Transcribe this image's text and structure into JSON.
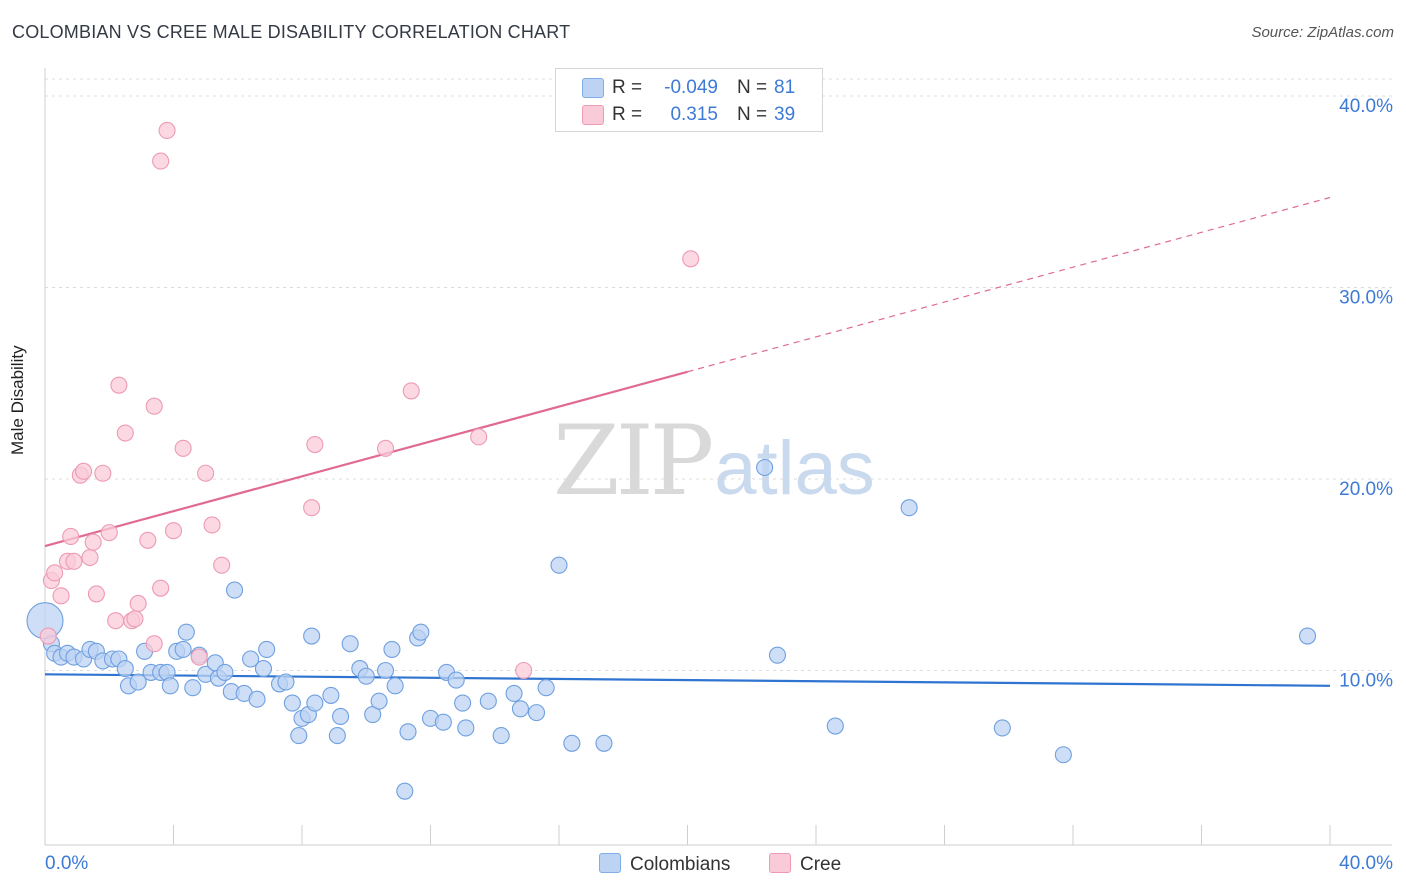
{
  "header": {
    "title": "COLOMBIAN VS CREE MALE DISABILITY CORRELATION CHART",
    "source": "Source: ZipAtlas.com"
  },
  "watermark": {
    "zip": "ZIP",
    "atlas": "atlas"
  },
  "legend_top": {
    "rows": [
      {
        "r_label": "R =",
        "r_value": "-0.049",
        "n_label": "N =",
        "n_value": "81",
        "color": "#bcd3f3",
        "border": "#7faee8"
      },
      {
        "r_label": "R =",
        "r_value": "0.315",
        "n_label": "N =",
        "n_value": "39",
        "color": "#f9cbd8",
        "border": "#ee9ab4"
      }
    ]
  },
  "legend_bottom": {
    "items": [
      {
        "label": "Colombians",
        "color": "#bcd3f3",
        "border": "#7faee8"
      },
      {
        "label": "Cree",
        "color": "#f9cbd8",
        "border": "#ee9ab4"
      }
    ]
  },
  "chart_data": {
    "type": "scatter",
    "title": "COLOMBIAN VS CREE MALE DISABILITY CORRELATION CHART",
    "xlabel": "",
    "ylabel": "Male Disability",
    "xlim": [
      0,
      40
    ],
    "ylim": [
      0,
      40
    ],
    "x_tick_labels": [
      "0.0%",
      "40.0%"
    ],
    "y_ticks": [
      10,
      20,
      30,
      40
    ],
    "y_tick_labels": [
      "10.0%",
      "20.0%",
      "30.0%",
      "40.0%"
    ],
    "grid": true,
    "colors": {
      "blue_fill": "#bcd3f3",
      "blue_edge": "#6fa0e0",
      "blue_line": "#2f74d0",
      "pink_fill": "#f9cbd8",
      "pink_edge": "#ee9ab4",
      "pink_line": "#e06a94",
      "tick_text": "#3d7ad6"
    },
    "series": [
      {
        "name": "Colombians",
        "r": -0.049,
        "n": 81,
        "trend": {
          "x0": 0.0,
          "y0": 9.8,
          "x1": 40.0,
          "y1": 9.2,
          "dashed_from": null
        },
        "points": [
          [
            0.0,
            12.6
          ],
          [
            0.2,
            11.4
          ],
          [
            0.3,
            10.9
          ],
          [
            0.5,
            10.7
          ],
          [
            0.7,
            10.9
          ],
          [
            0.9,
            10.7
          ],
          [
            1.2,
            10.6
          ],
          [
            1.4,
            11.1
          ],
          [
            1.6,
            11.0
          ],
          [
            1.8,
            10.5
          ],
          [
            2.1,
            10.6
          ],
          [
            2.3,
            10.6
          ],
          [
            2.5,
            10.1
          ],
          [
            2.6,
            9.2
          ],
          [
            2.9,
            9.4
          ],
          [
            3.1,
            11.0
          ],
          [
            3.3,
            9.9
          ],
          [
            3.6,
            9.9
          ],
          [
            3.8,
            9.9
          ],
          [
            3.9,
            9.2
          ],
          [
            4.1,
            11.0
          ],
          [
            4.3,
            11.1
          ],
          [
            4.4,
            12.0
          ],
          [
            4.6,
            9.1
          ],
          [
            4.8,
            10.8
          ],
          [
            5.0,
            9.8
          ],
          [
            5.3,
            10.4
          ],
          [
            5.4,
            9.6
          ],
          [
            5.6,
            9.9
          ],
          [
            5.8,
            8.9
          ],
          [
            5.9,
            14.2
          ],
          [
            6.2,
            8.8
          ],
          [
            6.4,
            10.6
          ],
          [
            6.6,
            8.5
          ],
          [
            6.8,
            10.1
          ],
          [
            6.9,
            11.1
          ],
          [
            7.3,
            9.3
          ],
          [
            7.5,
            9.4
          ],
          [
            7.7,
            8.3
          ],
          [
            7.9,
            6.6
          ],
          [
            8.0,
            7.5
          ],
          [
            8.2,
            7.7
          ],
          [
            8.3,
            11.8
          ],
          [
            8.4,
            8.3
          ],
          [
            8.9,
            8.7
          ],
          [
            9.1,
            6.6
          ],
          [
            9.2,
            7.6
          ],
          [
            9.5,
            11.4
          ],
          [
            9.8,
            10.1
          ],
          [
            10.0,
            9.7
          ],
          [
            10.2,
            7.7
          ],
          [
            10.4,
            8.4
          ],
          [
            10.6,
            10.0
          ],
          [
            10.8,
            11.1
          ],
          [
            10.9,
            9.2
          ],
          [
            11.2,
            3.7
          ],
          [
            11.3,
            6.8
          ],
          [
            11.6,
            11.7
          ],
          [
            11.7,
            12.0
          ],
          [
            12.0,
            7.5
          ],
          [
            12.4,
            7.3
          ],
          [
            12.5,
            9.9
          ],
          [
            12.8,
            9.5
          ],
          [
            13.0,
            8.3
          ],
          [
            13.1,
            7.0
          ],
          [
            13.8,
            8.4
          ],
          [
            14.2,
            6.6
          ],
          [
            14.6,
            8.8
          ],
          [
            14.8,
            8.0
          ],
          [
            15.3,
            7.8
          ],
          [
            15.6,
            9.1
          ],
          [
            16.0,
            15.5
          ],
          [
            16.4,
            6.2
          ],
          [
            17.4,
            6.2
          ],
          [
            22.4,
            20.6
          ],
          [
            22.8,
            10.8
          ],
          [
            24.6,
            7.1
          ],
          [
            26.9,
            18.5
          ],
          [
            29.8,
            7.0
          ],
          [
            31.7,
            5.6
          ],
          [
            39.3,
            11.8
          ]
        ]
      },
      {
        "name": "Cree",
        "r": 0.315,
        "n": 39,
        "trend": {
          "x0": 0.0,
          "y0": 16.5,
          "x1": 40.0,
          "y1": 34.7,
          "dashed_from": 20.0
        },
        "points": [
          [
            0.1,
            11.8
          ],
          [
            0.2,
            14.7
          ],
          [
            0.3,
            15.1
          ],
          [
            0.5,
            13.9
          ],
          [
            0.7,
            15.7
          ],
          [
            0.8,
            17.0
          ],
          [
            0.9,
            15.7
          ],
          [
            1.1,
            20.2
          ],
          [
            1.2,
            20.4
          ],
          [
            1.4,
            15.9
          ],
          [
            1.5,
            16.7
          ],
          [
            1.6,
            14.0
          ],
          [
            1.8,
            20.3
          ],
          [
            2.0,
            17.2
          ],
          [
            2.2,
            12.6
          ],
          [
            2.3,
            24.9
          ],
          [
            2.5,
            22.4
          ],
          [
            2.7,
            12.6
          ],
          [
            2.8,
            12.7
          ],
          [
            2.9,
            13.5
          ],
          [
            3.2,
            16.8
          ],
          [
            3.4,
            11.4
          ],
          [
            3.4,
            23.8
          ],
          [
            3.6,
            14.3
          ],
          [
            3.6,
            36.6
          ],
          [
            3.8,
            38.2
          ],
          [
            4.0,
            17.3
          ],
          [
            4.3,
            21.6
          ],
          [
            4.8,
            10.7
          ],
          [
            5.0,
            20.3
          ],
          [
            5.2,
            17.6
          ],
          [
            5.5,
            15.5
          ],
          [
            8.3,
            18.5
          ],
          [
            8.4,
            21.8
          ],
          [
            10.6,
            21.6
          ],
          [
            11.4,
            24.6
          ],
          [
            13.5,
            22.2
          ],
          [
            14.9,
            10.0
          ],
          [
            20.1,
            31.5
          ]
        ]
      }
    ]
  }
}
